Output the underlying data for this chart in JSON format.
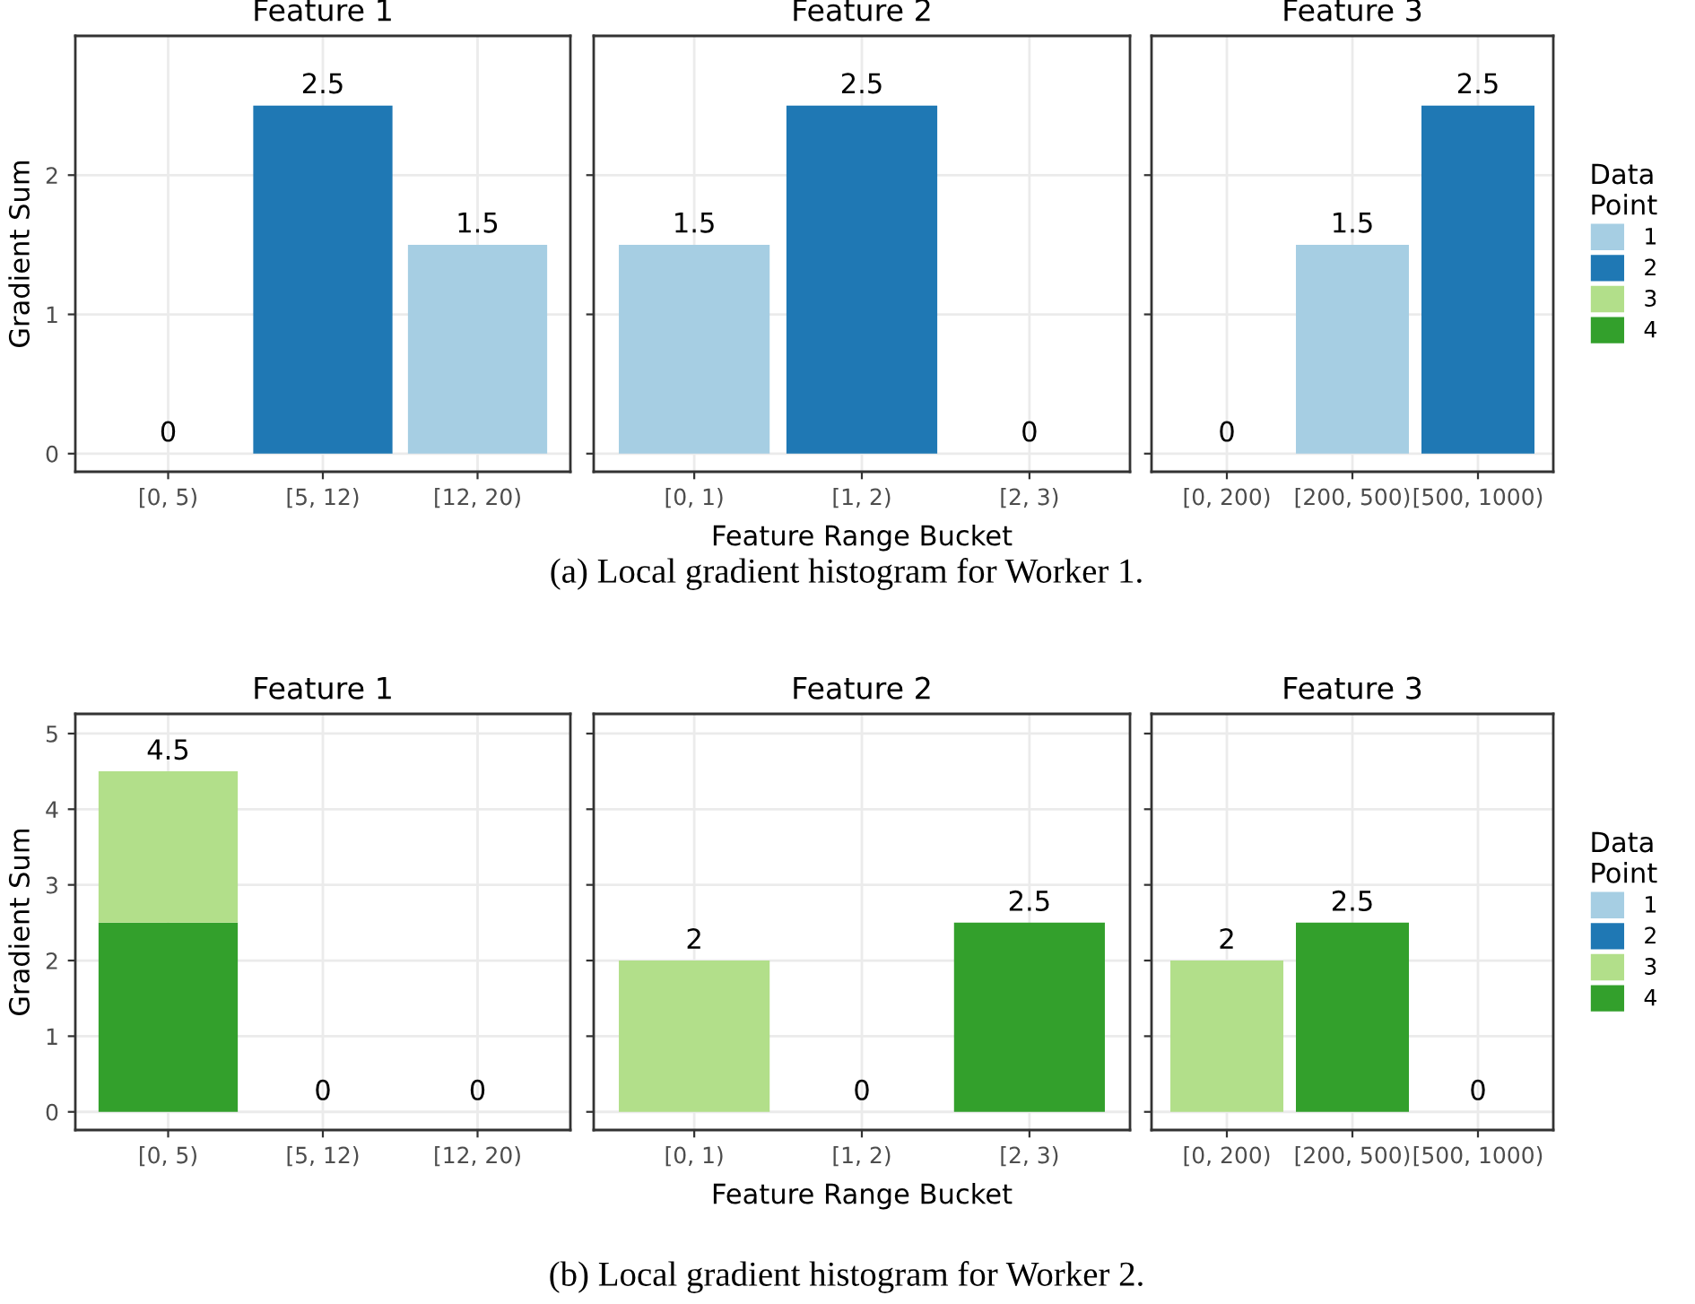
{
  "chart_data": [
    {
      "type": "bar",
      "stacked": true,
      "title": "Feature 1",
      "ylabel": "Gradient Sum",
      "categories": [
        "[0, 5)",
        "[5, 12)",
        "[12, 20)"
      ],
      "ylim": [
        -0.13,
        3.0
      ],
      "yticks": [
        0,
        1,
        2
      ],
      "grid": true,
      "series": [
        {
          "color": "#1f78b4",
          "values": [
            null,
            2.5,
            null
          ]
        },
        {
          "color": "#a6cee3",
          "values": [
            null,
            null,
            1.5
          ]
        }
      ],
      "totals": [
        "0",
        "2.5",
        "1.5"
      ]
    },
    {
      "type": "bar",
      "stacked": true,
      "title": "Feature 2",
      "xlabel": "Feature Range Bucket",
      "categories": [
        "[0, 1)",
        "[1, 2)",
        "[2, 3)"
      ],
      "ylim": [
        -0.13,
        3.0
      ],
      "yticks": [
        0,
        1,
        2
      ],
      "grid": true,
      "tick_labels": "x",
      "series": [
        {
          "color": "#1f78b4",
          "values": [
            null,
            2.5,
            null
          ]
        },
        {
          "color": "#a6cee3",
          "values": [
            1.5,
            null,
            null
          ]
        }
      ],
      "totals": [
        "1.5",
        "2.5",
        "0"
      ],
      "annotations": [
        "(a) Local gradient histogram for Worker 1."
      ]
    },
    {
      "type": "bar",
      "stacked": true,
      "title": "Feature 3",
      "categories": [
        "[0, 200)",
        "[200, 500)",
        "[500, 1000)"
      ],
      "ylim": [
        -0.13,
        3.0
      ],
      "yticks": [
        0,
        1,
        2
      ],
      "grid": true,
      "legend": "right",
      "legend_title": "Data Point",
      "tick_labels": "x",
      "series": [
        {
          "name": "4",
          "color": "#33a02c",
          "values": [
            null,
            null,
            null
          ]
        },
        {
          "name": "3",
          "color": "#b2df8a",
          "values": [
            null,
            null,
            null
          ]
        },
        {
          "name": "2",
          "color": "#1f78b4",
          "values": [
            null,
            null,
            2.5
          ]
        },
        {
          "name": "1",
          "color": "#a6cee3",
          "values": [
            null,
            1.5,
            null
          ]
        }
      ],
      "totals": [
        "0",
        "1.5",
        "2.5"
      ]
    },
    {
      "type": "bar",
      "stacked": true,
      "title": "Feature 1",
      "ylabel": "Gradient Sum",
      "categories": [
        "[0, 5)",
        "[5, 12)",
        "[12, 20)"
      ],
      "ylim": [
        -0.24,
        5.26
      ],
      "yticks": [
        0,
        1,
        2,
        3,
        4,
        5
      ],
      "grid": true,
      "series": [
        {
          "color": "#33a02c",
          "values": [
            2.5,
            null,
            null
          ]
        },
        {
          "color": "#b2df8a",
          "values": [
            2.0,
            null,
            null
          ]
        }
      ],
      "totals": [
        "4.5",
        "0",
        "0"
      ]
    },
    {
      "type": "bar",
      "stacked": true,
      "title": "Feature 2",
      "xlabel": "Feature Range Bucket",
      "categories": [
        "[0, 1)",
        "[1, 2)",
        "[2, 3)"
      ],
      "ylim": [
        -0.24,
        5.26
      ],
      "yticks": [
        0,
        1,
        2,
        3,
        4,
        5
      ],
      "grid": true,
      "tick_labels": "x",
      "series": [
        {
          "color": "#33a02c",
          "values": [
            null,
            null,
            2.5
          ]
        },
        {
          "color": "#b2df8a",
          "values": [
            2.0,
            null,
            null
          ]
        }
      ],
      "totals": [
        "2",
        "0",
        "2.5"
      ],
      "annotations": [
        "(b) Local gradient histogram for Worker 2."
      ]
    },
    {
      "type": "bar",
      "stacked": true,
      "title": "Feature 3",
      "categories": [
        "[0, 200)",
        "[200, 500)",
        "[500, 1000)"
      ],
      "ylim": [
        -0.24,
        5.26
      ],
      "yticks": [
        0,
        1,
        2,
        3,
        4,
        5
      ],
      "grid": true,
      "legend": "right",
      "legend_title": "Data Point",
      "tick_labels": "x",
      "series": [
        {
          "name": "4",
          "color": "#33a02c",
          "values": [
            null,
            2.5,
            null
          ]
        },
        {
          "name": "3",
          "color": "#b2df8a",
          "values": [
            2.0,
            null,
            null
          ]
        },
        {
          "name": "2",
          "color": "#1f78b4",
          "values": [
            null,
            null,
            null
          ]
        },
        {
          "name": "1",
          "color": "#a6cee3",
          "values": [
            null,
            null,
            null
          ]
        }
      ],
      "totals": [
        "2",
        "2.5",
        "0"
      ]
    }
  ]
}
